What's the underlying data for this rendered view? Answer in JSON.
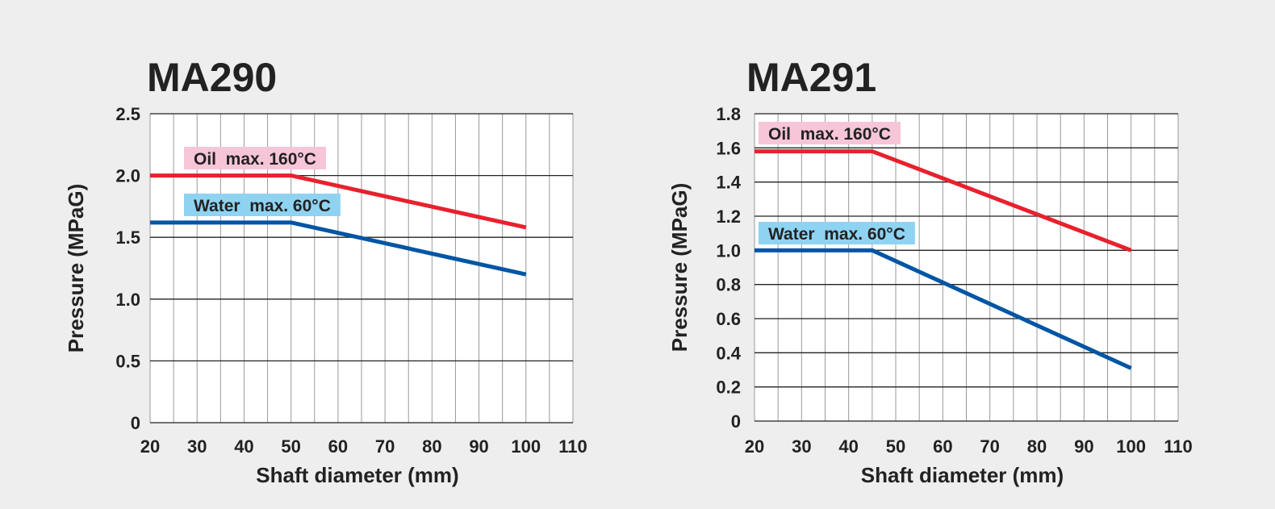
{
  "chart_data": [
    {
      "type": "line",
      "title": "MA290",
      "xlabel": "Shaft diameter (mm)",
      "ylabel": "Pressure (MPaG)",
      "xlim": [
        20,
        110
      ],
      "ylim": [
        0,
        2.5
      ],
      "x_ticks": [
        "20",
        "30",
        "40",
        "50",
        "60",
        "70",
        "80",
        "90",
        "100",
        "110"
      ],
      "y_ticks": [
        "0",
        "0.5",
        "1.0",
        "1.5",
        "2.0",
        "2.5"
      ],
      "grid": true,
      "series": [
        {
          "name": "Oil  max. 160°C",
          "color": "#e8212e",
          "label_bg": "#f7c5d8",
          "points": [
            [
              20,
              2.0
            ],
            [
              50,
              2.0
            ],
            [
              100,
              1.58
            ]
          ]
        },
        {
          "name": "Water  max. 60°C",
          "color": "#0055a5",
          "label_bg": "#8fd3f2",
          "points": [
            [
              20,
              1.62
            ],
            [
              50,
              1.62
            ],
            [
              100,
              1.2
            ]
          ]
        }
      ]
    },
    {
      "type": "line",
      "title": "MA291",
      "xlabel": "Shaft diameter (mm)",
      "ylabel": "Pressure (MPaG)",
      "xlim": [
        20,
        110
      ],
      "ylim": [
        0,
        1.8
      ],
      "x_ticks": [
        "20",
        "30",
        "40",
        "50",
        "60",
        "70",
        "80",
        "90",
        "100",
        "110"
      ],
      "y_ticks": [
        "0",
        "0.2",
        "0.4",
        "0.6",
        "0.8",
        "1.0",
        "1.2",
        "1.4",
        "1.6",
        "1.8"
      ],
      "grid": true,
      "series": [
        {
          "name": "Oil  max. 160°C",
          "color": "#e8212e",
          "label_bg": "#f7c5d8",
          "points": [
            [
              20,
              1.58
            ],
            [
              45,
              1.58
            ],
            [
              100,
              1.0
            ]
          ]
        },
        {
          "name": "Water  max. 60°C",
          "color": "#0055a5",
          "label_bg": "#8fd3f2",
          "points": [
            [
              20,
              1.0
            ],
            [
              45,
              1.0
            ],
            [
              100,
              0.31
            ]
          ]
        }
      ]
    }
  ]
}
